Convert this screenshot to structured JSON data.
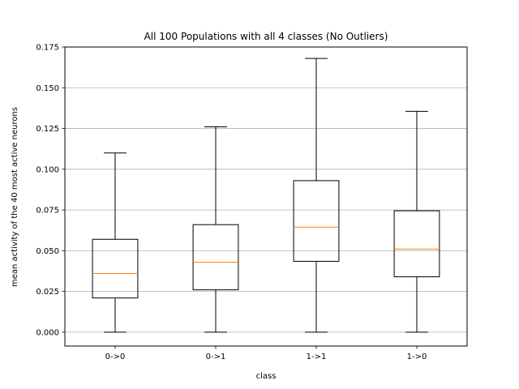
{
  "chart_data": {
    "type": "box",
    "title": "All 100 Populations with all 4 classes (No Outliers)",
    "xlabel": "class",
    "ylabel": "mean activity of the 40 most active neurons",
    "categories": [
      "0->0",
      "0->1",
      "1->1",
      "1->0"
    ],
    "boxes": [
      {
        "whisker_low": 0.0,
        "q1": 0.021,
        "median": 0.036,
        "q3": 0.057,
        "whisker_high": 0.11
      },
      {
        "whisker_low": 0.0,
        "q1": 0.026,
        "median": 0.043,
        "q3": 0.066,
        "whisker_high": 0.126
      },
      {
        "whisker_low": 0.0,
        "q1": 0.0435,
        "median": 0.0645,
        "q3": 0.093,
        "whisker_high": 0.168
      },
      {
        "whisker_low": 0.0,
        "q1": 0.034,
        "median": 0.051,
        "q3": 0.0745,
        "whisker_high": 0.1355
      }
    ],
    "ylim": [
      -0.0085,
      0.175
    ],
    "yticks": [
      0.0,
      0.025,
      0.05,
      0.075,
      0.1,
      0.125,
      0.15,
      0.175
    ],
    "ytick_labels": [
      "0.000",
      "0.025",
      "0.050",
      "0.075",
      "0.100",
      "0.125",
      "0.150",
      "0.175"
    ],
    "grid": "y",
    "colors": {
      "box": "#000000",
      "median": "#ff7f0e",
      "grid": "#b0b0b0"
    }
  }
}
